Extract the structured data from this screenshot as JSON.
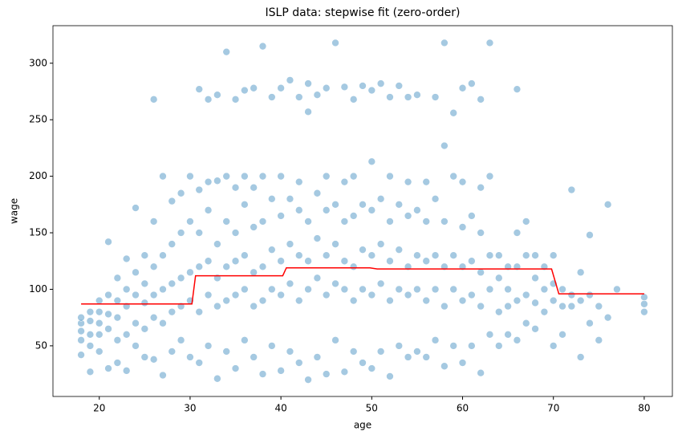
{
  "chart_data": {
    "type": "scatter",
    "title": "ISLP data: stepwise fit (zero-order)",
    "xlabel": "age",
    "ylabel": "wage",
    "color": "#1f77b4",
    "x": [
      18,
      18,
      18,
      18,
      18,
      19,
      19,
      19,
      19,
      19,
      20,
      20,
      20,
      20,
      20,
      21,
      21,
      21,
      21,
      21,
      22,
      22,
      22,
      22,
      22,
      23,
      23,
      23,
      23,
      23,
      24,
      24,
      24,
      24,
      24,
      25,
      25,
      25,
      25,
      25,
      26,
      26,
      26,
      26,
      26,
      26,
      27,
      27,
      27,
      27,
      27,
      28,
      28,
      28,
      28,
      28,
      29,
      29,
      29,
      29,
      29,
      30,
      30,
      30,
      30,
      30,
      31,
      31,
      31,
      31,
      31,
      31,
      32,
      32,
      32,
      32,
      32,
      32,
      33,
      33,
      33,
      33,
      33,
      33,
      34,
      34,
      34,
      34,
      34,
      34,
      35,
      35,
      35,
      35,
      35,
      35,
      36,
      36,
      36,
      36,
      36,
      36,
      37,
      37,
      37,
      37,
      37,
      37,
      38,
      38,
      38,
      38,
      38,
      38,
      39,
      39,
      39,
      39,
      39,
      40,
      40,
      40,
      40,
      40,
      40,
      41,
      41,
      41,
      41,
      41,
      42,
      42,
      42,
      42,
      42,
      42,
      43,
      43,
      43,
      43,
      43,
      43,
      44,
      44,
      44,
      44,
      44,
      45,
      45,
      45,
      45,
      45,
      45,
      46,
      46,
      46,
      46,
      46,
      47,
      47,
      47,
      47,
      47,
      47,
      48,
      48,
      48,
      48,
      48,
      48,
      49,
      49,
      49,
      49,
      49,
      50,
      50,
      50,
      50,
      50,
      50,
      51,
      51,
      51,
      51,
      51,
      52,
      52,
      52,
      52,
      52,
      52,
      53,
      53,
      53,
      53,
      53,
      54,
      54,
      54,
      54,
      54,
      54,
      55,
      55,
      55,
      55,
      55,
      56,
      56,
      56,
      56,
      56,
      57,
      57,
      57,
      57,
      57,
      58,
      58,
      58,
      58,
      58,
      58,
      59,
      59,
      59,
      59,
      59,
      60,
      60,
      60,
      60,
      60,
      60,
      61,
      61,
      61,
      61,
      61,
      62,
      62,
      62,
      62,
      62,
      62,
      63,
      63,
      63,
      63,
      63,
      64,
      64,
      64,
      64,
      65,
      65,
      65,
      65,
      66,
      66,
      66,
      66,
      66,
      67,
      67,
      67,
      67,
      68,
      68,
      68,
      68,
      69,
      69,
      69,
      70,
      70,
      70,
      70,
      71,
      71,
      71,
      72,
      72,
      72,
      73,
      73,
      73,
      74,
      74,
      74,
      75,
      75,
      76,
      76,
      77,
      80,
      80,
      80
    ],
    "values": [
      42,
      55,
      63,
      70,
      75,
      27,
      50,
      60,
      72,
      80,
      45,
      60,
      70,
      80,
      90,
      30,
      65,
      78,
      95,
      142,
      35,
      55,
      75,
      90,
      110,
      28,
      60,
      85,
      100,
      127,
      50,
      70,
      95,
      115,
      172,
      40,
      65,
      88,
      105,
      130,
      38,
      75,
      95,
      120,
      160,
      268,
      24,
      70,
      100,
      130,
      200,
      45,
      80,
      105,
      140,
      178,
      55,
      85,
      110,
      150,
      185,
      40,
      90,
      115,
      160,
      200,
      35,
      80,
      120,
      150,
      188,
      277,
      50,
      95,
      125,
      170,
      195,
      268,
      21,
      85,
      110,
      140,
      196,
      272,
      45,
      90,
      120,
      160,
      200,
      310,
      30,
      95,
      125,
      150,
      190,
      268,
      55,
      100,
      130,
      175,
      200,
      276,
      40,
      85,
      115,
      155,
      190,
      278,
      25,
      90,
      120,
      160,
      200,
      315,
      50,
      100,
      135,
      180,
      270,
      28,
      95,
      125,
      165,
      200,
      278,
      45,
      105,
      140,
      180,
      285,
      35,
      90,
      130,
      170,
      195,
      270,
      20,
      100,
      125,
      160,
      257,
      282,
      40,
      110,
      145,
      185,
      272,
      25,
      95,
      130,
      170,
      200,
      278,
      55,
      105,
      140,
      175,
      318,
      27,
      100,
      125,
      160,
      195,
      279,
      45,
      90,
      120,
      165,
      200,
      268,
      35,
      100,
      135,
      175,
      280,
      30,
      95,
      130,
      170,
      213,
      276,
      45,
      105,
      140,
      180,
      282,
      23,
      90,
      125,
      160,
      200,
      270,
      50,
      100,
      135,
      175,
      280,
      40,
      95,
      120,
      165,
      195,
      270,
      45,
      100,
      130,
      170,
      272,
      40,
      90,
      125,
      160,
      195,
      55,
      100,
      130,
      180,
      270,
      32,
      85,
      120,
      160,
      227,
      318,
      50,
      100,
      130,
      200,
      256,
      35,
      90,
      120,
      155,
      195,
      278,
      50,
      95,
      125,
      165,
      282,
      26,
      85,
      115,
      150,
      190,
      268,
      60,
      100,
      130,
      200,
      318,
      50,
      80,
      110,
      130,
      60,
      85,
      100,
      120,
      55,
      90,
      120,
      150,
      277,
      70,
      95,
      130,
      160,
      65,
      88,
      110,
      130,
      80,
      100,
      120,
      50,
      90,
      105,
      130,
      60,
      85,
      100,
      85,
      95,
      188,
      40,
      90,
      115,
      70,
      95,
      148,
      55,
      85,
      75,
      175,
      100,
      80,
      87,
      93
    ],
    "line": {
      "color": "#ff0000",
      "x": [
        18,
        30.2,
        30.6,
        40.2,
        40.6,
        49.8,
        50.6,
        69.8,
        70.6,
        80
      ],
      "values": [
        87,
        87,
        112,
        112,
        119,
        119,
        118,
        118,
        96,
        96
      ]
    },
    "xlim": [
      14.9,
      83.1
    ],
    "xticks": [
      20,
      30,
      40,
      50,
      60,
      70,
      80
    ],
    "ylim": [
      5.2,
      333.2
    ],
    "yticks": [
      50,
      100,
      150,
      200,
      250,
      300
    ],
    "grid": false
  }
}
